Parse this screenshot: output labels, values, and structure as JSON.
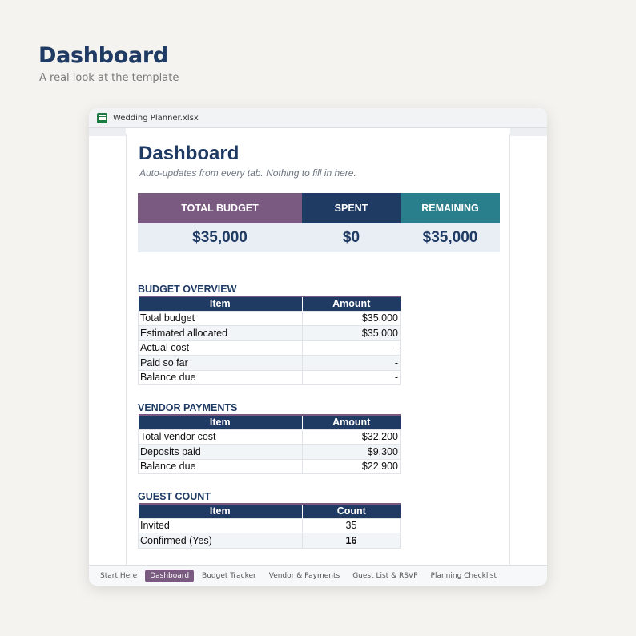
{
  "hero": {
    "title": "Dashboard",
    "subtitle": "A real look at the template"
  },
  "window": {
    "filename": "Wedding Planner.xlsx",
    "icon": "spreadsheet-icon"
  },
  "sheet": {
    "title": "Dashboard",
    "subtitle": "Auto-updates from every tab. Nothing to fill in here.",
    "cards": [
      {
        "label": "TOTAL BUDGET",
        "value": "$35,000",
        "color": "#7b5a82"
      },
      {
        "label": "SPENT",
        "value": "$0",
        "color": "#1f3a63"
      },
      {
        "label": "REMAINING",
        "value": "$35,000",
        "color": "#2a7f8c"
      }
    ]
  },
  "budget_overview": {
    "title": "BUDGET OVERVIEW",
    "headers": [
      "Item",
      "Amount"
    ],
    "rows": [
      [
        "Total budget",
        "$35,000"
      ],
      [
        "Estimated allocated",
        "$35,000"
      ],
      [
        "Actual cost",
        "-"
      ],
      [
        "Paid so far",
        "-"
      ],
      [
        "Balance due",
        "-"
      ]
    ]
  },
  "vendor_payments": {
    "title": "VENDOR PAYMENTS",
    "headers": [
      "Item",
      "Amount"
    ],
    "rows": [
      [
        "Total vendor cost",
        "$32,200"
      ],
      [
        "Deposits paid",
        "$9,300"
      ],
      [
        "Balance due",
        "$22,900"
      ]
    ]
  },
  "guest_count": {
    "title": "GUEST COUNT",
    "headers": [
      "Item",
      "Count"
    ],
    "rows": [
      [
        "Invited",
        "35"
      ],
      [
        "Confirmed (Yes)",
        "16"
      ]
    ]
  },
  "tabs": [
    {
      "label": "Start Here",
      "active": false
    },
    {
      "label": "Dashboard",
      "active": true
    },
    {
      "label": "Budget Tracker",
      "active": false
    },
    {
      "label": "Vendor & Payments",
      "active": false
    },
    {
      "label": "Guest List & RSVP",
      "active": false
    },
    {
      "label": "Planning Checklist",
      "active": false
    }
  ]
}
